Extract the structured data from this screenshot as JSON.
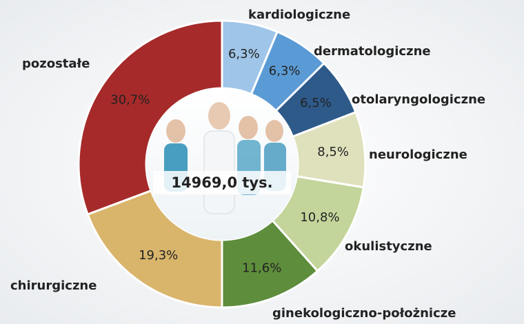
{
  "chart_data": {
    "type": "donut",
    "center_label": "14969,0 tys.",
    "categories": [
      "kardiologiczne",
      "dermatologiczne",
      "otolaryngologiczne",
      "neurologiczne",
      "okulistyczne",
      "ginekologiczno-położnicze",
      "chirurgiczne",
      "pozostałe"
    ],
    "values": [
      6.3,
      6.3,
      6.5,
      8.5,
      10.8,
      11.6,
      19.3,
      30.7
    ],
    "value_labels": [
      "6,3%",
      "6,3%",
      "6,5%",
      "8,5%",
      "10,8%",
      "11,6%",
      "19,3%",
      "30,7%"
    ],
    "colors": [
      "#9fc5e8",
      "#5b9bd5",
      "#2e5a8a",
      "#dfe1bd",
      "#c3d59b",
      "#5e8d3c",
      "#d9b56c",
      "#a62a2a"
    ]
  }
}
